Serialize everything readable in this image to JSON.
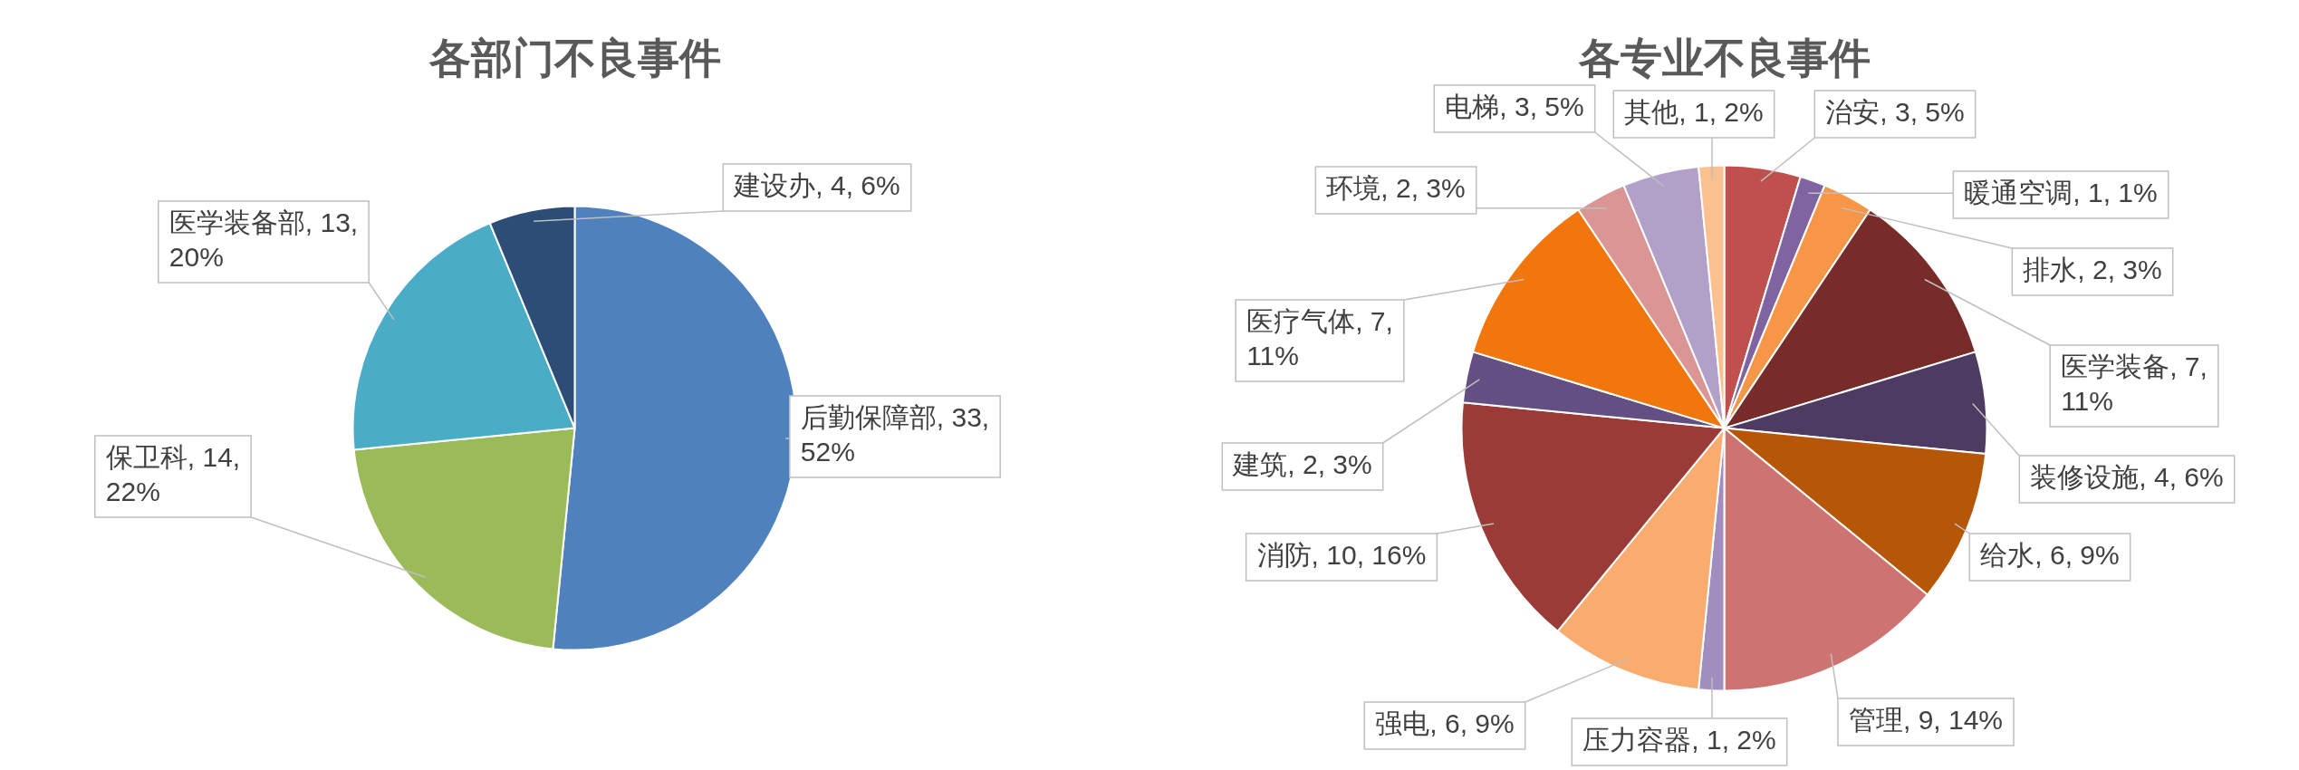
{
  "chart_data": [
    {
      "type": "pie",
      "title": "各部门不良事件",
      "categories": [
        "后勤保障部",
        "保卫科",
        "医学装备部",
        "建设办"
      ],
      "values": [
        33,
        14,
        13,
        4
      ],
      "colors": [
        "#4f81bd",
        "#9bbb59",
        "#4bacc6",
        "#2c4d75"
      ],
      "value_labels": [
        "33, 52%",
        "14, 22%",
        "13, 20%",
        "4, 6%"
      ],
      "legend": false
    },
    {
      "type": "pie",
      "title": "各专业不良事件",
      "categories": [
        "治安",
        "暖通空调",
        "排水",
        "医学装备",
        "装修设施",
        "给水",
        "管理",
        "压力容器",
        "强电",
        "消防",
        "建筑",
        "医疗气体",
        "环境",
        "电梯",
        "其他"
      ],
      "values": [
        3,
        1,
        2,
        7,
        4,
        6,
        9,
        1,
        6,
        10,
        2,
        7,
        2,
        3,
        1
      ],
      "colors": [
        "#c0504d",
        "#8064a2",
        "#f79646",
        "#772c2a",
        "#4d3b62",
        "#b65708",
        "#cd7371",
        "#a18ebf",
        "#f9ac6e",
        "#9a3b38",
        "#644f82",
        "#f1760b",
        "#d99694",
        "#b1a0c7",
        "#fac090"
      ],
      "value_labels": [
        "3, 5%",
        "1, 1%",
        "2, 3%",
        "7, 11%",
        "4, 6%",
        "6, 9%",
        "9, 14%",
        "1, 2%",
        "6, 9%",
        "10, 16%",
        "2, 3%",
        "7, 11%",
        "2, 3%",
        "3, 5%",
        "1, 2%"
      ],
      "legend": false
    }
  ]
}
